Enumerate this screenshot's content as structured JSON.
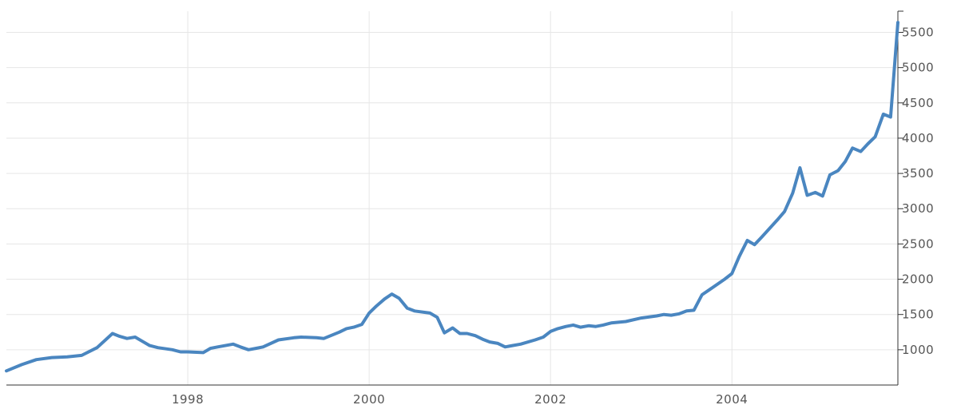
{
  "chart_data": {
    "type": "line",
    "title": "",
    "xlabel": "",
    "ylabel": "",
    "xlim": [
      1996.0,
      2005.83
    ],
    "ylim": [
      500,
      5800
    ],
    "grid": true,
    "x_ticks": [
      "1998",
      "2000",
      "2002",
      "2004"
    ],
    "y_ticks": [
      "1000",
      "1500",
      "2000",
      "2500",
      "3000",
      "3500",
      "4000",
      "4500",
      "5000",
      "5500"
    ],
    "y_axis_position": "right",
    "line_color": "#4a86c0",
    "series": [
      {
        "x": [
          1996.0,
          1996.17,
          1996.33,
          1996.5,
          1996.67,
          1996.83,
          1997.0,
          1997.17,
          1997.25,
          1997.33,
          1997.42,
          1997.5,
          1997.58,
          1997.67,
          1997.83,
          1997.92,
          1998.0,
          1998.17,
          1998.25,
          1998.33,
          1998.5,
          1998.58,
          1998.67,
          1998.75,
          1998.83,
          1999.0,
          1999.17,
          1999.25,
          1999.42,
          1999.5,
          1999.67,
          1999.75,
          1999.83,
          1999.92,
          2000.0,
          2000.08,
          2000.17,
          2000.25,
          2000.33,
          2000.42,
          2000.5,
          2000.67,
          2000.75,
          2000.83,
          2000.92,
          2001.0,
          2001.08,
          2001.17,
          2001.25,
          2001.33,
          2001.42,
          2001.5,
          2001.58,
          2001.67,
          2001.83,
          2001.92,
          2002.0,
          2002.08,
          2002.17,
          2002.25,
          2002.33,
          2002.42,
          2002.5,
          2002.58,
          2002.67,
          2002.83,
          2003.0,
          2003.17,
          2003.25,
          2003.33,
          2003.42,
          2003.5,
          2003.58,
          2003.67,
          2003.75,
          2003.92,
          2004.0,
          2004.08,
          2004.17,
          2004.25,
          2004.33,
          2004.5,
          2004.58,
          2004.67,
          2004.75,
          2004.83,
          2004.92,
          2005.0,
          2005.08,
          2005.17,
          2005.25,
          2005.33,
          2005.42,
          2005.5,
          2005.58,
          2005.67,
          2005.75,
          2005.83
        ],
        "y": [
          700,
          790,
          860,
          890,
          900,
          920,
          1030,
          1230,
          1190,
          1160,
          1180,
          1120,
          1060,
          1030,
          1000,
          970,
          970,
          960,
          1020,
          1040,
          1080,
          1040,
          1000,
          1020,
          1040,
          1140,
          1170,
          1180,
          1170,
          1160,
          1250,
          1300,
          1320,
          1360,
          1520,
          1620,
          1720,
          1790,
          1730,
          1590,
          1550,
          1520,
          1460,
          1240,
          1310,
          1230,
          1230,
          1200,
          1150,
          1110,
          1090,
          1040,
          1060,
          1080,
          1140,
          1180,
          1260,
          1300,
          1330,
          1350,
          1320,
          1340,
          1330,
          1350,
          1380,
          1400,
          1450,
          1480,
          1500,
          1490,
          1510,
          1550,
          1560,
          1780,
          1850,
          2000,
          2080,
          2320,
          2550,
          2490,
          2600,
          2840,
          2960,
          3220,
          3580,
          3190,
          3230,
          3180,
          3480,
          3540,
          3670,
          3860,
          3810,
          3920,
          4020,
          4340,
          4300,
          5640
        ]
      }
    ]
  }
}
